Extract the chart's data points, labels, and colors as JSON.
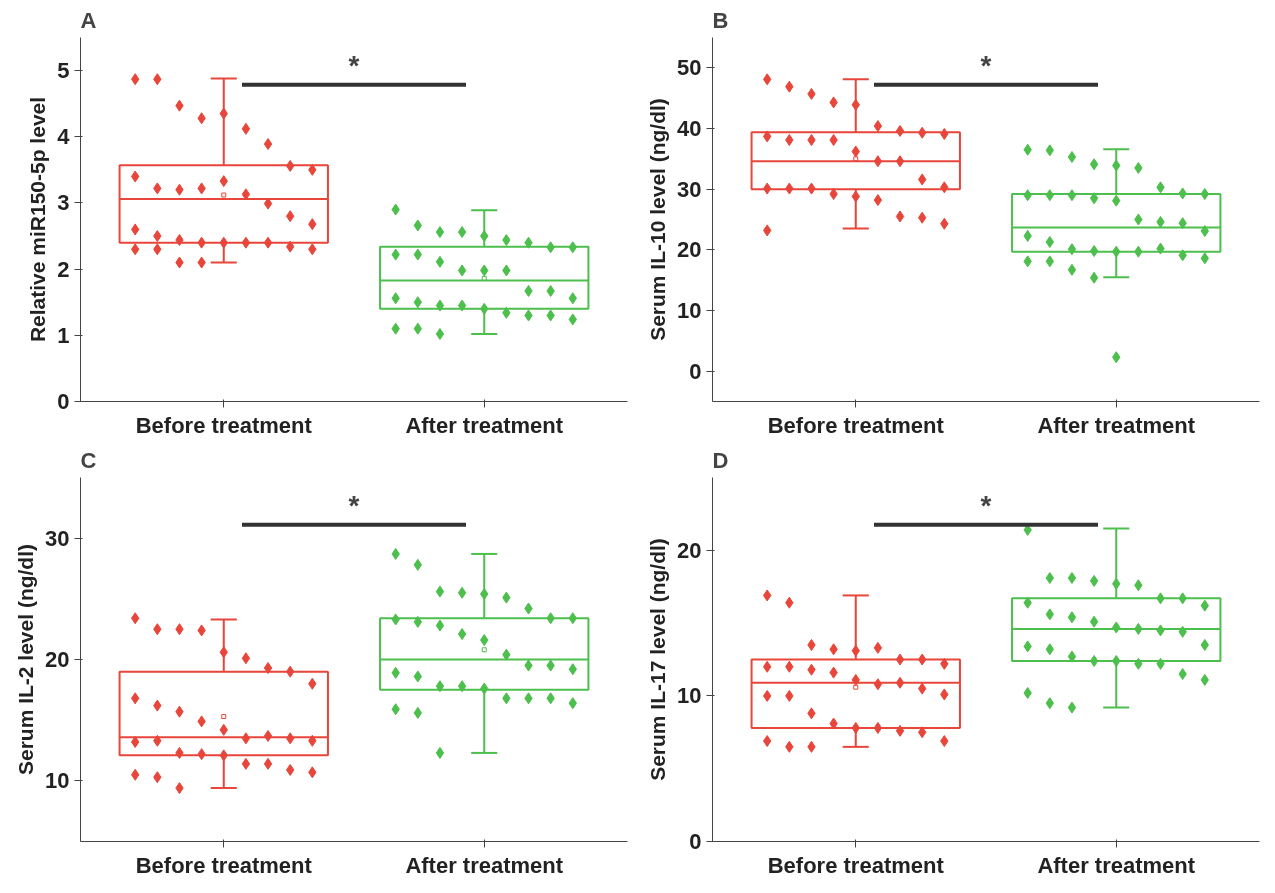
{
  "chart_data": [
    {
      "type": "box",
      "title": "A",
      "ylabel": "Relative miR150-5p level",
      "categories": [
        "Before treatment",
        "After treatment"
      ],
      "colors": [
        "#e8463a",
        "#4cbf4c"
      ],
      "ylim": [
        0,
        5.5
      ],
      "yticks": [
        0,
        1,
        2,
        3,
        4,
        5
      ],
      "grid": false,
      "marker": "diamond",
      "annotations": [
        "*"
      ],
      "boxes": [
        {
          "low": 2.1,
          "q1": 2.4,
          "median": 3.06,
          "q3": 3.57,
          "high": 4.88,
          "mean": 3.12
        },
        {
          "low": 1.02,
          "q1": 1.4,
          "median": 1.83,
          "q3": 2.34,
          "high": 2.89,
          "mean": 1.86
        }
      ],
      "series": [
        {
          "type": "scatter",
          "color": "#e8463a",
          "x": [
            "Before treatment",
            "Before treatment",
            "Before treatment",
            "Before treatment",
            "Before treatment",
            "Before treatment",
            "Before treatment",
            "Before treatment",
            "Before treatment",
            "Before treatment",
            "Before treatment",
            "Before treatment",
            "Before treatment",
            "Before treatment",
            "Before treatment",
            "Before treatment",
            "Before treatment",
            "Before treatment",
            "Before treatment",
            "Before treatment",
            "Before treatment",
            "Before treatment",
            "Before treatment",
            "Before treatment",
            "Before treatment",
            "Before treatment",
            "Before treatment",
            "Before treatment",
            "Before treatment",
            "Before treatment",
            "Before treatment"
          ],
          "values": [
            4.87,
            4.87,
            4.47,
            4.28,
            4.35,
            4.12,
            3.89,
            3.56,
            3.5,
            3.4,
            3.22,
            3.2,
            3.22,
            3.33,
            3.13,
            2.99,
            2.8,
            2.68,
            2.6,
            2.5,
            2.44,
            2.4,
            2.4,
            2.4,
            2.4,
            2.34,
            2.3,
            2.3,
            2.3,
            2.1,
            2.1
          ]
        },
        {
          "type": "scatter",
          "color": "#4cbf4c",
          "x": [
            "After treatment",
            "After treatment",
            "After treatment",
            "After treatment",
            "After treatment",
            "After treatment",
            "After treatment",
            "After treatment",
            "After treatment",
            "After treatment",
            "After treatment",
            "After treatment",
            "After treatment",
            "After treatment",
            "After treatment",
            "After treatment",
            "After treatment",
            "After treatment",
            "After treatment",
            "After treatment",
            "After treatment",
            "After treatment",
            "After treatment",
            "After treatment",
            "After treatment",
            "After treatment",
            "After treatment",
            "After treatment",
            "After treatment",
            "After treatment"
          ],
          "values": [
            2.9,
            2.66,
            2.56,
            2.56,
            2.5,
            2.44,
            2.4,
            2.33,
            2.33,
            2.22,
            2.22,
            2.11,
            1.98,
            1.98,
            1.98,
            1.67,
            1.67,
            1.56,
            1.56,
            1.5,
            1.45,
            1.45,
            1.4,
            1.34,
            1.3,
            1.3,
            1.24,
            1.1,
            1.1,
            1.02
          ]
        }
      ]
    },
    {
      "type": "box",
      "title": "B",
      "ylabel": "Serum IL-10 level (ng/dl)",
      "categories": [
        "Before treatment",
        "After treatment"
      ],
      "colors": [
        "#e8463a",
        "#4cbf4c"
      ],
      "ylim": [
        -5,
        55
      ],
      "yticks": [
        0,
        10,
        20,
        30,
        40,
        50
      ],
      "grid": false,
      "marker": "diamond",
      "annotations": [
        "*"
      ],
      "boxes": [
        {
          "low": 23.5,
          "q1": 30,
          "median": 34.6,
          "q3": 39.4,
          "high": 48.1,
          "mean": 35
        },
        {
          "low": 15.5,
          "q1": 19.7,
          "median": 23.7,
          "q3": 29.2,
          "high": 36.6
        }
      ],
      "series": [
        {
          "type": "scatter",
          "color": "#e8463a",
          "x": [
            "Before treatment",
            "Before treatment",
            "Before treatment",
            "Before treatment",
            "Before treatment",
            "Before treatment",
            "Before treatment",
            "Before treatment",
            "Before treatment",
            "Before treatment",
            "Before treatment",
            "Before treatment",
            "Before treatment",
            "Before treatment",
            "Before treatment",
            "Before treatment",
            "Before treatment",
            "Before treatment",
            "Before treatment",
            "Before treatment",
            "Before treatment",
            "Before treatment",
            "Before treatment",
            "Before treatment",
            "Before treatment",
            "Before treatment",
            "Before treatment",
            "Before treatment"
          ],
          "values": [
            48.1,
            46.9,
            45.7,
            44.3,
            43.9,
            40.4,
            39.6,
            39.3,
            39.1,
            38.7,
            38.1,
            38.1,
            38.1,
            36.2,
            34.6,
            34.6,
            31.6,
            30.3,
            30.1,
            30.1,
            30.1,
            29.2,
            28.8,
            28.2,
            25.5,
            25.3,
            24.3,
            23.2
          ]
        },
        {
          "type": "scatter",
          "color": "#4cbf4c",
          "x": [
            "After treatment",
            "After treatment",
            "After treatment",
            "After treatment",
            "After treatment",
            "After treatment",
            "After treatment",
            "After treatment",
            "After treatment",
            "After treatment",
            "After treatment",
            "After treatment",
            "After treatment",
            "After treatment",
            "After treatment",
            "After treatment",
            "After treatment",
            "After treatment",
            "After treatment",
            "After treatment",
            "After treatment",
            "After treatment",
            "After treatment",
            "After treatment",
            "After treatment",
            "After treatment",
            "After treatment",
            "After treatment",
            "After treatment",
            "After treatment",
            "After treatment",
            "After treatment"
          ],
          "values": [
            36.5,
            36.4,
            35.3,
            34.1,
            33.9,
            33.5,
            30.3,
            29.3,
            29.2,
            29.0,
            29.0,
            29.0,
            28.5,
            28.1,
            25.0,
            24.6,
            24.4,
            23.1,
            22.3,
            21.3,
            20.1,
            19.8,
            19.7,
            19.7,
            20.2,
            19.1,
            18.6,
            18.1,
            18.1,
            16.7,
            15.4,
            2.3
          ]
        }
      ]
    },
    {
      "type": "box",
      "title": "C",
      "ylabel": "Serum IL-2 level (ng/dl)",
      "categories": [
        "Before treatment",
        "After treatment"
      ],
      "colors": [
        "#e8463a",
        "#4cbf4c"
      ],
      "ylim": [
        5,
        35
      ],
      "yticks": [
        10,
        20,
        30
      ],
      "grid": false,
      "marker": "diamond",
      "annotations": [
        "*"
      ],
      "boxes": [
        {
          "low": 9.4,
          "q1": 12.1,
          "median": 13.6,
          "q3": 19.0,
          "high": 23.3,
          "mean": 15.3
        },
        {
          "low": 12.3,
          "q1": 17.5,
          "median": 20.0,
          "q3": 23.4,
          "high": 28.7,
          "mean": 20.8
        }
      ],
      "series": [
        {
          "type": "scatter",
          "color": "#e8463a",
          "x": [
            "Before treatment",
            "Before treatment",
            "Before treatment",
            "Before treatment",
            "Before treatment",
            "Before treatment",
            "Before treatment",
            "Before treatment",
            "Before treatment",
            "Before treatment",
            "Before treatment",
            "Before treatment",
            "Before treatment",
            "Before treatment",
            "Before treatment",
            "Before treatment",
            "Before treatment",
            "Before treatment",
            "Before treatment",
            "Before treatment",
            "Before treatment",
            "Before treatment",
            "Before treatment",
            "Before treatment",
            "Before treatment",
            "Before treatment",
            "Before treatment",
            "Before treatment",
            "Before treatment",
            "Before treatment"
          ],
          "values": [
            23.4,
            22.5,
            22.5,
            22.4,
            20.6,
            20.1,
            19.3,
            19.0,
            18.0,
            16.8,
            16.2,
            15.7,
            14.9,
            14.2,
            13.5,
            13.7,
            13.5,
            13.3,
            13.2,
            13.3,
            12.3,
            12.2,
            12.1,
            11.4,
            11.4,
            10.9,
            10.7,
            10.5,
            10.3,
            9.4
          ]
        },
        {
          "type": "scatter",
          "color": "#4cbf4c",
          "x": [
            "After treatment",
            "After treatment",
            "After treatment",
            "After treatment",
            "After treatment",
            "After treatment",
            "After treatment",
            "After treatment",
            "After treatment",
            "After treatment",
            "After treatment",
            "After treatment",
            "After treatment",
            "After treatment",
            "After treatment",
            "After treatment",
            "After treatment",
            "After treatment",
            "After treatment",
            "After treatment",
            "After treatment",
            "After treatment",
            "After treatment",
            "After treatment",
            "After treatment",
            "After treatment",
            "After treatment",
            "After treatment",
            "After treatment",
            "After treatment"
          ],
          "values": [
            28.7,
            27.8,
            25.6,
            25.5,
            25.4,
            25.1,
            24.2,
            23.4,
            23.4,
            23.3,
            23.1,
            22.8,
            22.1,
            21.6,
            20.4,
            19.5,
            19.5,
            19.2,
            18.9,
            18.6,
            17.8,
            17.8,
            17.6,
            16.8,
            16.8,
            16.8,
            16.4,
            15.9,
            15.6,
            12.3
          ]
        }
      ]
    },
    {
      "type": "box",
      "title": "D",
      "ylabel": "Serum IL-17 level (ng/dl)",
      "categories": [
        "Before treatment",
        "After treatment"
      ],
      "colors": [
        "#e8463a",
        "#4cbf4c"
      ],
      "ylim": [
        0,
        25
      ],
      "yticks": [
        0,
        10,
        20
      ],
      "grid": false,
      "marker": "diamond",
      "annotations": [
        "*"
      ],
      "boxes": [
        {
          "low": 6.5,
          "q1": 7.8,
          "median": 10.9,
          "q3": 12.5,
          "high": 16.9,
          "mean": 10.6
        },
        {
          "low": 9.2,
          "q1": 12.4,
          "median": 14.6,
          "q3": 16.7,
          "high": 21.5
        }
      ],
      "series": [
        {
          "type": "scatter",
          "color": "#e8463a",
          "x": [
            "Before treatment",
            "Before treatment",
            "Before treatment",
            "Before treatment",
            "Before treatment",
            "Before treatment",
            "Before treatment",
            "Before treatment",
            "Before treatment",
            "Before treatment",
            "Before treatment",
            "Before treatment",
            "Before treatment",
            "Before treatment",
            "Before treatment",
            "Before treatment",
            "Before treatment",
            "Before treatment",
            "Before treatment",
            "Before treatment",
            "Before treatment",
            "Before treatment",
            "Before treatment",
            "Before treatment",
            "Before treatment",
            "Before treatment",
            "Before treatment",
            "Before treatment",
            "Before treatment",
            "Before treatment"
          ],
          "values": [
            16.9,
            16.4,
            13.5,
            13.2,
            13.1,
            13.3,
            12.5,
            12.5,
            12.2,
            12.0,
            12.0,
            11.8,
            11.6,
            11.1,
            10.8,
            10.9,
            10.5,
            10.1,
            10.0,
            10.0,
            8.8,
            8.1,
            7.8,
            7.8,
            7.6,
            7.5,
            6.9,
            6.9,
            6.5,
            6.5
          ]
        },
        {
          "type": "scatter",
          "color": "#4cbf4c",
          "x": [
            "After treatment",
            "After treatment",
            "After treatment",
            "After treatment",
            "After treatment",
            "After treatment",
            "After treatment",
            "After treatment",
            "After treatment",
            "After treatment",
            "After treatment",
            "After treatment",
            "After treatment",
            "After treatment",
            "After treatment",
            "After treatment",
            "After treatment",
            "After treatment",
            "After treatment",
            "After treatment",
            "After treatment",
            "After treatment",
            "After treatment",
            "After treatment",
            "After treatment",
            "After treatment",
            "After treatment",
            "After treatment",
            "After treatment",
            "After treatment"
          ],
          "values": [
            21.4,
            18.1,
            18.1,
            17.9,
            17.7,
            17.6,
            16.7,
            16.7,
            16.2,
            16.4,
            15.6,
            15.4,
            15.1,
            14.7,
            14.6,
            14.5,
            14.4,
            13.5,
            13.4,
            13.2,
            12.7,
            12.4,
            12.4,
            12.2,
            12.2,
            11.5,
            11.1,
            10.2,
            9.5,
            9.2
          ]
        }
      ]
    }
  ]
}
